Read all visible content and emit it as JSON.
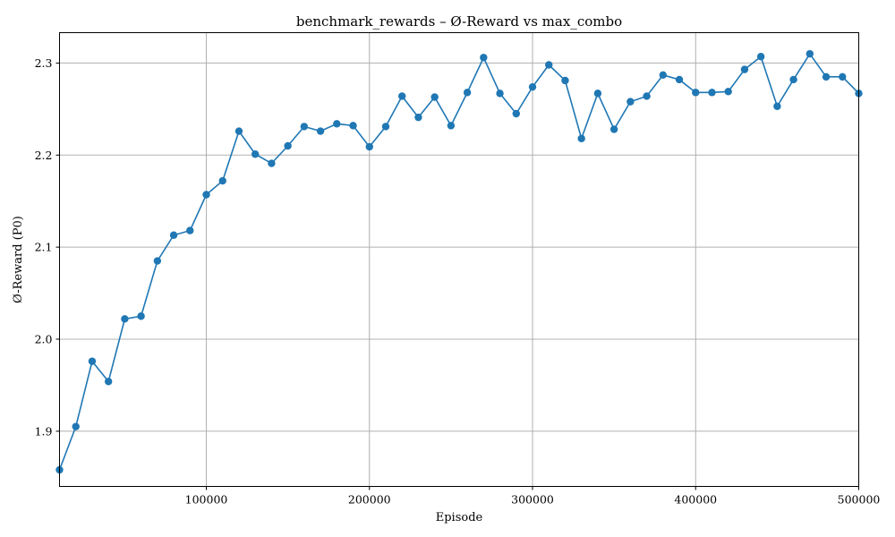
{
  "chart_data": {
    "type": "line",
    "title": "benchmark_rewards – Ø-Reward vs max_combo",
    "xlabel": "Episode",
    "ylabel": "Ø-Reward (P0)",
    "xlim": [
      10000,
      500000
    ],
    "ylim": [
      1.84,
      2.333
    ],
    "x_ticks": [
      100000,
      200000,
      300000,
      400000,
      500000
    ],
    "x_tick_labels": [
      "100000",
      "200000",
      "300000",
      "400000",
      "500000"
    ],
    "y_ticks": [
      1.9,
      2.0,
      2.1,
      2.2,
      2.3
    ],
    "y_tick_labels": [
      "1.9",
      "2.0",
      "2.1",
      "2.2",
      "2.3"
    ],
    "grid": true,
    "marker": "circle",
    "color": "#1f77b4",
    "series": [
      {
        "x": [
          10000,
          20000,
          30000,
          40000,
          50000,
          60000,
          70000,
          80000,
          90000,
          100000,
          110000,
          120000,
          130000,
          140000,
          150000,
          160000,
          170000,
          180000,
          190000,
          200000,
          210000,
          220000,
          230000,
          240000,
          250000,
          260000,
          270000,
          280000,
          290000,
          300000,
          310000,
          320000,
          330000,
          340000,
          350000,
          360000,
          370000,
          380000,
          390000,
          400000,
          410000,
          420000,
          430000,
          440000,
          450000,
          460000,
          470000,
          480000,
          490000,
          500000
        ],
        "y": [
          1.858,
          1.905,
          1.976,
          1.954,
          2.022,
          2.025,
          2.085,
          2.113,
          2.118,
          2.157,
          2.172,
          2.226,
          2.201,
          2.191,
          2.21,
          2.231,
          2.226,
          2.234,
          2.232,
          2.209,
          2.231,
          2.264,
          2.241,
          2.263,
          2.232,
          2.268,
          2.306,
          2.267,
          2.245,
          2.274,
          2.298,
          2.281,
          2.218,
          2.267,
          2.228,
          2.258,
          2.264,
          2.287,
          2.282,
          2.268,
          2.268,
          2.269,
          2.293,
          2.307,
          2.253,
          2.282,
          2.31,
          2.285,
          2.285,
          2.267
        ]
      }
    ]
  }
}
